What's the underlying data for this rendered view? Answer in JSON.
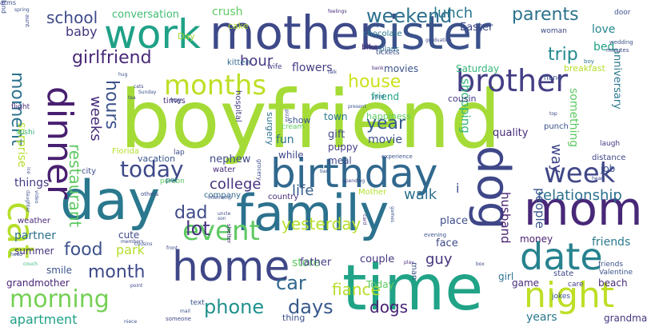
{
  "words": [
    {
      "text": "boyfriend",
      "color": "#a5db36",
      "vertical": false
    },
    {
      "text": "time",
      "color": "#20a386",
      "vertical": false
    },
    {
      "text": "family",
      "color": "#2c728e",
      "vertical": false
    },
    {
      "text": "day",
      "color": "#2a788e",
      "vertical": false
    },
    {
      "text": "mother",
      "color": "#3e4989",
      "vertical": false
    },
    {
      "text": "sister",
      "color": "#3b528b",
      "vertical": false
    },
    {
      "text": "mom",
      "color": "#482878",
      "vertical": false
    },
    {
      "text": "dog",
      "color": "#3f4788",
      "vertical": true
    },
    {
      "text": "birthday",
      "color": "#31688e",
      "vertical": false
    },
    {
      "text": "home",
      "color": "#3f4788",
      "vertical": false
    },
    {
      "text": "work",
      "color": "#1fa187",
      "vertical": false
    },
    {
      "text": "date",
      "color": "#26828e",
      "vertical": false
    },
    {
      "text": "night",
      "color": "#bddf26",
      "vertical": false
    },
    {
      "text": "brother",
      "color": "#433e85",
      "vertical": false
    },
    {
      "text": "months",
      "color": "#bddf26",
      "vertical": false
    },
    {
      "text": "dinner",
      "color": "#481f70",
      "vertical": true
    },
    {
      "text": "cat",
      "color": "#b5de2b",
      "vertical": true
    },
    {
      "text": "event",
      "color": "#5ec962",
      "vertical": false
    },
    {
      "text": "morning",
      "color": "#75d054",
      "vertical": false
    },
    {
      "text": "week",
      "color": "#3f4788",
      "vertical": false
    },
    {
      "text": "today",
      "color": "#3e4989",
      "vertical": false
    },
    {
      "text": "phone",
      "color": "#21918c",
      "vertical": false
    },
    {
      "text": "days",
      "color": "#38598c",
      "vertical": false
    },
    {
      "text": "weekend",
      "color": "#2d708e",
      "vertical": false
    },
    {
      "text": "girlfriend",
      "color": "#482878",
      "vertical": false
    },
    {
      "text": "college",
      "color": "#46327e",
      "vertical": false
    },
    {
      "text": "house",
      "color": "#cde11d",
      "vertical": false
    },
    {
      "text": "parents",
      "color": "#2c728e",
      "vertical": false
    },
    {
      "text": "month",
      "color": "#3e4989",
      "vertical": false
    },
    {
      "text": "lot",
      "color": "#46337e",
      "vertical": false
    },
    {
      "text": "food",
      "color": "#3b528b",
      "vertical": false
    },
    {
      "text": "car",
      "color": "#31688e",
      "vertical": false
    },
    {
      "text": "trip",
      "color": "#238a8d",
      "vertical": false
    },
    {
      "text": "year",
      "color": "#365c8d",
      "vertical": false
    },
    {
      "text": "yesterday",
      "color": "#b5de2b",
      "vertical": false
    },
    {
      "text": "life",
      "color": "#365d8d",
      "vertical": false
    },
    {
      "text": "dad",
      "color": "#3e4a89",
      "vertical": false
    },
    {
      "text": "hours",
      "color": "#3b528b",
      "vertical": true
    },
    {
      "text": "school",
      "color": "#3e4989",
      "vertical": false
    },
    {
      "text": "hour",
      "color": "#453781",
      "vertical": false
    },
    {
      "text": "lunch",
      "color": "#2a788e",
      "vertical": false
    },
    {
      "text": "moment",
      "color": "#2c738e",
      "vertical": true
    },
    {
      "text": "fiance",
      "color": "#b8de29",
      "vertical": false
    },
    {
      "text": "park",
      "color": "#b5de2b",
      "vertical": false
    },
    {
      "text": "walk",
      "color": "#2c728e",
      "vertical": false
    },
    {
      "text": "weeks",
      "color": "#472c7a",
      "vertical": true
    },
    {
      "text": "restaurant",
      "color": "#5ec962",
      "vertical": true
    },
    {
      "text": "guy",
      "color": "#46337e",
      "vertical": false
    },
    {
      "text": "way",
      "color": "#3f4788",
      "vertical": true
    },
    {
      "text": "baby",
      "color": "#453781",
      "vertical": false
    },
    {
      "text": "dogs",
      "color": "#482475",
      "vertical": false
    },
    {
      "text": "bed",
      "color": "#1fa187",
      "vertical": false
    },
    {
      "text": "relationship",
      "color": "#2d708e",
      "vertical": false
    },
    {
      "text": "husband",
      "color": "#481f70",
      "vertical": true
    },
    {
      "text": "love",
      "color": "#25858e",
      "vertical": false
    },
    {
      "text": "people",
      "color": "#39558c",
      "vertical": true
    },
    {
      "text": "i",
      "color": "#39558c",
      "vertical": false
    },
    {
      "text": "apartment",
      "color": "#1fa187",
      "vertical": false
    },
    {
      "text": "years",
      "color": "#2a788e",
      "vertical": false
    },
    {
      "text": "flowers",
      "color": "#433e85",
      "vertical": false
    },
    {
      "text": "things",
      "color": "#433d84",
      "vertical": false
    },
    {
      "text": "partner",
      "color": "#2c728e",
      "vertical": false
    },
    {
      "text": "movie",
      "color": "#3b528b",
      "vertical": false
    },
    {
      "text": "place",
      "color": "#3d4e8a",
      "vertical": false
    },
    {
      "text": "store",
      "color": "#5ec962",
      "vertical": false
    },
    {
      "text": "game",
      "color": "#472c7a",
      "vertical": false
    },
    {
      "text": "grandmother",
      "color": "#482576",
      "vertical": false
    },
    {
      "text": "surprise",
      "color": "#b5de2b",
      "vertical": true
    },
    {
      "text": "nephew",
      "color": "#3e4989",
      "vertical": false
    },
    {
      "text": "friends",
      "color": "#2a788e",
      "vertical": false
    },
    {
      "text": "gift",
      "color": "#3f4788",
      "vertical": false
    },
    {
      "text": "fun",
      "color": "#2c728e",
      "vertical": false
    },
    {
      "text": "beach",
      "color": "#472c7a",
      "vertical": false
    },
    {
      "text": "couple",
      "color": "#453882",
      "vertical": false
    },
    {
      "text": "father",
      "color": "#433e85",
      "vertical": false
    },
    {
      "text": "crush",
      "color": "#5ec962",
      "vertical": false
    },
    {
      "text": "summer",
      "color": "#46327e",
      "vertical": false
    },
    {
      "text": "grandma",
      "color": "#46337e",
      "vertical": false
    },
    {
      "text": "job",
      "color": "#3d4e8a",
      "vertical": false
    },
    {
      "text": "something",
      "color": "#5ec962",
      "vertical": true
    },
    {
      "text": "shopping",
      "color": "#35b779",
      "vertical": true
    },
    {
      "text": "money",
      "color": "#481f70",
      "vertical": false
    },
    {
      "text": "cute",
      "color": "#3e4989",
      "vertical": false
    },
    {
      "text": "conversation",
      "color": "#3fbc73",
      "vertical": false
    },
    {
      "text": "anniversary",
      "color": "#2a788e",
      "vertical": true
    },
    {
      "text": "town",
      "color": "#2a788e",
      "vertical": false
    },
    {
      "text": "puppy",
      "color": "#433e85",
      "vertical": false
    },
    {
      "text": "smile",
      "color": "#3b528b",
      "vertical": false
    },
    {
      "text": "Easter",
      "color": "#3e4989",
      "vertical": false
    },
    {
      "text": "happiness",
      "color": "#5ec962",
      "vertical": false
    },
    {
      "text": "movies",
      "color": "#3b528b",
      "vertical": false
    },
    {
      "text": "meal",
      "color": "#3e4989",
      "vertical": false
    },
    {
      "text": "while",
      "color": "#3e4989",
      "vertical": false
    },
    {
      "text": "quality",
      "color": "#472c7a",
      "vertical": false
    },
    {
      "text": "Saturday",
      "color": "#35b779",
      "vertical": false
    },
    {
      "text": "friend",
      "color": "#1fa187",
      "vertical": false
    },
    {
      "text": "girl",
      "color": "#2c728e",
      "vertical": false
    },
    {
      "text": "show",
      "color": "#39558c",
      "vertical": false
    },
    {
      "text": "cousin",
      "color": "#443983",
      "vertical": false
    },
    {
      "text": "vacation",
      "color": "#39558c",
      "vertical": false
    },
    {
      "text": "Today",
      "color": "#5ec962",
      "vertical": false
    },
    {
      "text": "face",
      "color": "#3e4989",
      "vertical": false
    },
    {
      "text": "Day",
      "color": "#a5db36",
      "vertical": false
    },
    {
      "text": "city",
      "color": "#3e4989",
      "vertical": false
    },
    {
      "text": "thing",
      "color": "#3b528b",
      "vertical": false
    },
    {
      "text": "water",
      "color": "#472c7a",
      "vertical": false
    },
    {
      "text": "cake",
      "color": "#b5de2b",
      "vertical": false
    },
    {
      "text": "Mother",
      "color": "#b5de2b",
      "vertical": false
    },
    {
      "text": "kitten",
      "color": "#31688e",
      "vertical": false
    },
    {
      "text": "country",
      "color": "#472c7a",
      "vertical": false
    },
    {
      "text": "distance",
      "color": "#3e4989",
      "vertical": false
    },
    {
      "text": "Florida",
      "color": "#b5de2b",
      "vertical": false
    },
    {
      "text": "hospital",
      "color": "#433e85",
      "vertical": true
    },
    {
      "text": "chocolate",
      "color": "#2a788e",
      "vertical": false
    },
    {
      "text": "bike",
      "color": "#482878",
      "vertical": false
    },
    {
      "text": "breakfast",
      "color": "#b5de2b",
      "vertical": false
    },
    {
      "text": "surgery",
      "color": "#2c728e",
      "vertical": true
    },
    {
      "text": "company",
      "color": "#31688e",
      "vertical": false
    },
    {
      "text": "weather",
      "color": "#482878",
      "vertical": false
    },
    {
      "text": "man",
      "color": "#3b528b",
      "vertical": true
    },
    {
      "text": "state",
      "color": "#3e4989",
      "vertical": false
    },
    {
      "text": "wife",
      "color": "#433e85",
      "vertical": false
    },
    {
      "text": "plans",
      "color": "#2c728e",
      "vertical": false
    },
    {
      "text": "hand",
      "color": "#3b528b",
      "vertical": false
    },
    {
      "text": "times",
      "color": "#472c7a",
      "vertical": false
    },
    {
      "text": "person",
      "color": "#5ec962",
      "vertical": false
    },
    {
      "text": "pet",
      "color": "#2c728e",
      "vertical": false
    },
    {
      "text": "toy",
      "color": "#3b528b",
      "vertical": false
    },
    {
      "text": "tickets",
      "color": "#3b528b",
      "vertical": false
    },
    {
      "text": "friends",
      "color": "#3b528b",
      "vertical": false
    },
    {
      "text": "Valentine",
      "color": "#3b528b",
      "vertical": false
    },
    {
      "text": "sushi",
      "color": "#35b779",
      "vertical": false
    },
    {
      "text": "lap",
      "color": "#3e4989",
      "vertical": false
    },
    {
      "text": "cream",
      "color": "#5ec962",
      "vertical": false
    },
    {
      "text": "laugh",
      "color": "#433e85",
      "vertical": false
    },
    {
      "text": "punch",
      "color": "#3b528b",
      "vertical": false
    },
    {
      "text": "text",
      "color": "#3b528b",
      "vertical": false
    },
    {
      "text": "care",
      "color": "#433e85",
      "vertical": false
    },
    {
      "text": "jokes",
      "color": "#39558c",
      "vertical": false
    },
    {
      "text": "flight",
      "color": "#472c7a",
      "vertical": false
    },
    {
      "text": "aunt",
      "color": "#3e4989",
      "vertical": true
    },
    {
      "text": "door",
      "color": "#3b528b",
      "vertical": false
    },
    {
      "text": "spring",
      "color": "#3b528b",
      "vertical": false
    },
    {
      "text": "feelings",
      "color": "#472c7a",
      "vertical": false
    },
    {
      "text": "woman",
      "color": "#3e4989",
      "vertical": false
    },
    {
      "text": "boy",
      "color": "#2c728e",
      "vertical": false
    },
    {
      "text": "wedding",
      "color": "#3b528b",
      "vertical": false
    },
    {
      "text": "minutes",
      "color": "#3e4989",
      "vertical": false
    },
    {
      "text": "hug",
      "color": "#3b528b",
      "vertical": false
    },
    {
      "text": "cats",
      "color": "#3e4989",
      "vertical": false
    },
    {
      "text": "Sunday",
      "color": "#3b528b",
      "vertical": false
    },
    {
      "text": "tea",
      "color": "#3e4989",
      "vertical": false
    },
    {
      "text": "pizza",
      "color": "#3e4989",
      "vertical": true
    },
    {
      "text": "present",
      "color": "#3b528b",
      "vertical": false
    },
    {
      "text": "yard",
      "color": "#2c728e",
      "vertical": false
    },
    {
      "text": "graduation",
      "color": "#3e4989",
      "vertical": false
    },
    {
      "text": "talk",
      "color": "#3e4989",
      "vertical": false
    },
    {
      "text": "bank",
      "color": "#472c7a",
      "vertical": false
    },
    {
      "text": "grocery",
      "color": "#3e4989",
      "vertical": true
    },
    {
      "text": "experience",
      "color": "#3b528b",
      "vertical": false
    },
    {
      "text": "heart",
      "color": "#3e4989",
      "vertical": false
    },
    {
      "text": "internship",
      "color": "#3b528b",
      "vertical": false
    },
    {
      "text": "uncle",
      "color": "#3e4989",
      "vertical": false
    },
    {
      "text": "son",
      "color": "#3b528b",
      "vertical": false
    },
    {
      "text": "others",
      "color": "#3e4989",
      "vertical": false
    },
    {
      "text": "shelter",
      "color": "#472c7a",
      "vertical": true
    },
    {
      "text": "card",
      "color": "#472c7a",
      "vertical": true
    },
    {
      "text": "games",
      "color": "#3b528b",
      "vertical": true
    },
    {
      "text": "members",
      "color": "#3e4989",
      "vertical": false
    },
    {
      "text": "cousins",
      "color": "#3b528b",
      "vertical": false
    },
    {
      "text": "front",
      "color": "#3e4989",
      "vertical": false
    },
    {
      "text": "evening",
      "color": "#3b528b",
      "vertical": false
    },
    {
      "text": "play",
      "color": "#472c7a",
      "vertical": false
    },
    {
      "text": "couch",
      "color": "#35b779",
      "vertical": false
    },
    {
      "text": "point",
      "color": "#3e4989",
      "vertical": false
    },
    {
      "text": "mail",
      "color": "#3b528b",
      "vertical": false
    },
    {
      "text": "someone",
      "color": "#3e4989",
      "vertical": false
    },
    {
      "text": "niece",
      "color": "#3b528b",
      "vertical": false
    },
    {
      "text": "box",
      "color": "#3e4989",
      "vertical": false
    },
    {
      "text": "head",
      "color": "#3b528b",
      "vertical": false
    },
    {
      "text": "Spending",
      "color": "#3e4989",
      "vertical": false
    },
    {
      "text": "daughter",
      "color": "#3b528b",
      "vertical": true
    },
    {
      "text": "video",
      "color": "#3b528b",
      "vertical": true
    },
    {
      "text": "ice",
      "color": "#3e4989",
      "vertical": true
    },
    {
      "text": "bar",
      "color": "#3b528b",
      "vertical": false
    },
    {
      "text": "top",
      "color": "#3e4989",
      "vertical": false
    },
    {
      "text": "kind",
      "color": "#3b528b",
      "vertical": true
    },
    {
      "text": "arms",
      "color": "#3e4989",
      "vertical": false
    }
  ]
}
